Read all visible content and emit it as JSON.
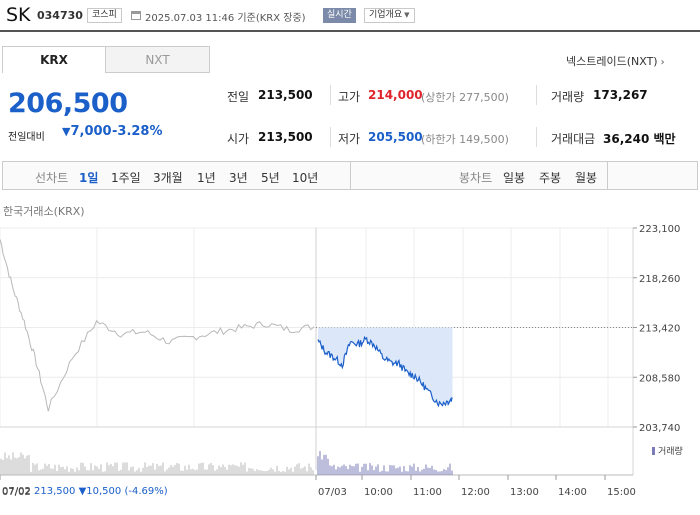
{
  "header": {
    "name": "SK",
    "code": "034730",
    "market": "코스피",
    "timestamp": "2025.07.03 11:46 기준(KRX 장중)",
    "realtime_label": "실시간",
    "overview_label": "기업개요"
  },
  "tabs": {
    "krx": "KRX",
    "nxt": "NXT"
  },
  "nxt_link": "넥스트레이드(NXT)",
  "quote": {
    "price": "206,500",
    "change_label": "전일대비",
    "change_abs": "7,000",
    "change_pct": "-3.28%"
  },
  "stats": {
    "prev_label": "전일",
    "prev": "213,500",
    "open_label": "시가",
    "open": "213,500",
    "high_label": "고가",
    "high": "214,000",
    "upper_limit": "(상한가 277,500)",
    "low_label": "저가",
    "low": "205,500",
    "lower_limit": "(하한가 149,500)",
    "volume_label": "거래량",
    "volume": "173,267",
    "amount_label": "거래대금",
    "amount": "36,240 백만"
  },
  "toolbar": {
    "line_label": "선차트",
    "periods": [
      "1일",
      "1주일",
      "3개월",
      "1년",
      "3년",
      "5년",
      "10년"
    ],
    "candle_label": "봉차트",
    "candle_periods": [
      "일봉",
      "주봉",
      "월봉"
    ]
  },
  "chart_caption": "한국거래소(KRX)",
  "volume_legend": "거래량",
  "bottom_info": {
    "date": "07/02",
    "price": "213,500",
    "change": "10,500",
    "pct": "(-4.69%)"
  },
  "colors": {
    "up": "#e0242b",
    "down": "#1b5fc9",
    "prev_day_line": "#b8b8b8",
    "today_fill": "#dce8fa"
  },
  "chart_data": {
    "type": "line",
    "y_ticks": [
      "223,100",
      "218,260",
      "213,420",
      "208,580",
      "203,740"
    ],
    "y_tick_values": [
      223100,
      218260,
      213420,
      208580,
      203740
    ],
    "ylim": [
      203740,
      223100
    ],
    "x_ticks": [
      "07/02",
      "07/03",
      "10:00",
      "11:00",
      "12:00",
      "13:00",
      "14:00",
      "15:00"
    ],
    "reference_line": 213420,
    "series": [
      {
        "segment": "previous-day",
        "x": [
          "07/02 09:00",
          "09:15",
          "09:30",
          "09:45",
          "10:00",
          "10:30",
          "11:00",
          "11:30",
          "12:00",
          "12:30",
          "13:00",
          "13:30",
          "14:00",
          "14:30",
          "15:00",
          "15:30"
        ],
        "values": [
          222000,
          217500,
          214000,
          210000,
          205500,
          210500,
          214000,
          212800,
          213000,
          212000,
          212500,
          213000,
          213400,
          213800,
          213200,
          213500
        ]
      },
      {
        "segment": "today",
        "x": [
          "07/03 09:00",
          "09:10",
          "09:20",
          "09:30",
          "09:40",
          "09:50",
          "10:00",
          "10:10",
          "10:20",
          "10:30",
          "10:40",
          "10:50",
          "11:00",
          "11:10",
          "11:20",
          "11:30",
          "11:40",
          "11:46"
        ],
        "values": [
          212100,
          211000,
          210500,
          209800,
          212000,
          211800,
          212300,
          211700,
          210500,
          210000,
          209900,
          209000,
          208700,
          207800,
          206800,
          206000,
          206200,
          206500
        ]
      }
    ]
  }
}
